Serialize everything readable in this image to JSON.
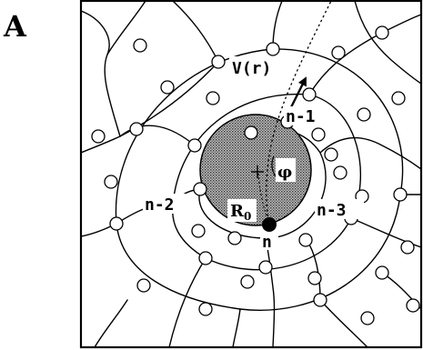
{
  "figure": {
    "panel_letter": "A",
    "labels": {
      "velocity": "V(r)",
      "n_minus_1": "n-1",
      "n_minus_2": "n-2",
      "n_minus_3": "n-3",
      "n": "n",
      "phi": "φ",
      "radius_main": "R",
      "radius_sub": "0"
    },
    "colors": {
      "ink": "#000000",
      "core_fill": "#9a9a9a",
      "node_fill": "#ffffff",
      "background": "#ffffff"
    }
  }
}
